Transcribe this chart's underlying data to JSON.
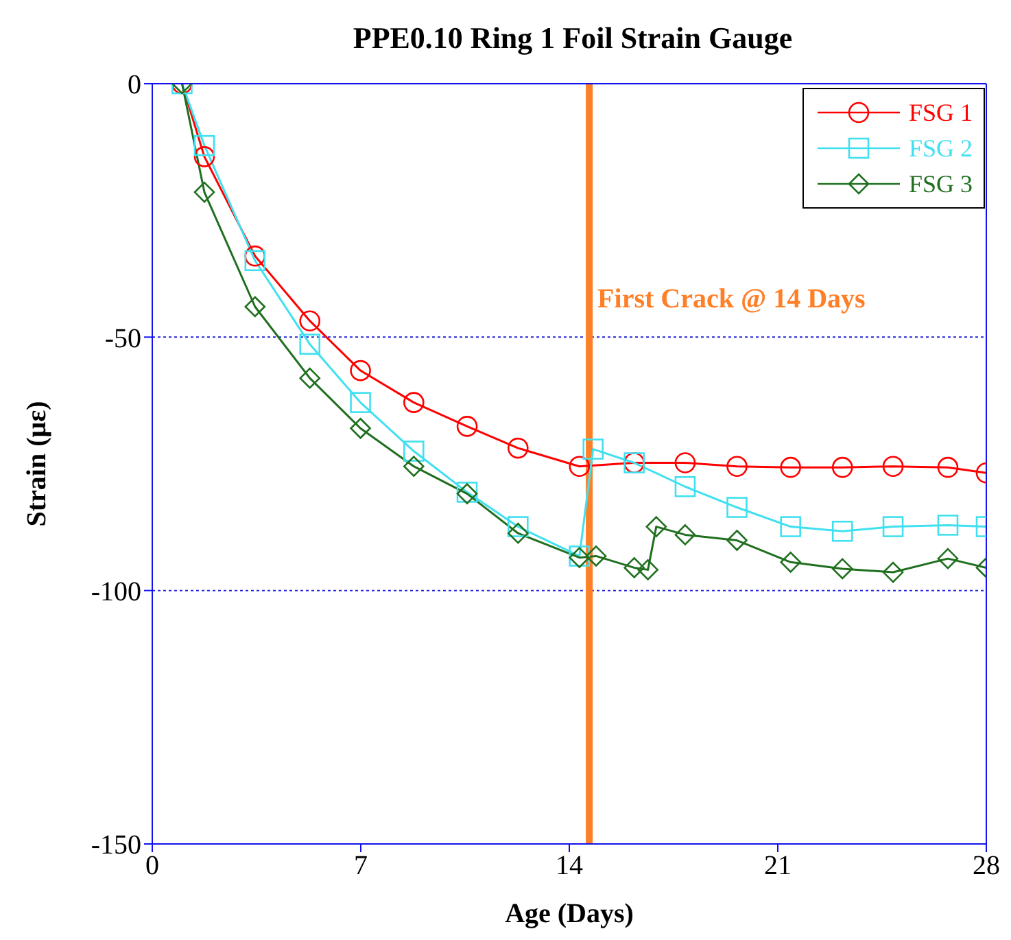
{
  "chart_data": {
    "type": "line",
    "title": "PPE0.10 Ring 1 Foil Strain Gauge",
    "xlabel": "Age (Days)",
    "ylabel": "Strain (με)",
    "xlim": [
      0,
      28
    ],
    "xticks": [
      0,
      7,
      14,
      21,
      28
    ],
    "ylim": [
      -150,
      0
    ],
    "yticks": [
      -150,
      -100,
      -50,
      0
    ],
    "grid": "y",
    "legend": "top right",
    "series": [
      {
        "name": "FSG 1",
        "color": "#ff0000",
        "marker": "circle",
        "x": [
          1,
          1.75,
          3.45,
          5.29,
          6.99,
          8.78,
          10.57,
          12.28,
          14.34,
          16.18,
          17.89,
          19.63,
          21.43,
          23.17,
          24.87,
          26.71,
          28
        ],
        "values": [
          0,
          -14.4,
          -34,
          -46.8,
          -56.6,
          -62.9,
          -67.6,
          -71.9,
          -75.5,
          -74.8,
          -74.8,
          -75.5,
          -75.7,
          -75.7,
          -75.5,
          -75.7,
          -76.8
        ]
      },
      {
        "name": "FSG 2",
        "color": "#40e0f0",
        "marker": "square",
        "x": [
          1,
          1.75,
          3.45,
          5.29,
          6.99,
          8.78,
          10.57,
          12.28,
          14.34,
          14.8,
          16.18,
          17.89,
          19.63,
          21.43,
          23.17,
          24.87,
          26.71,
          28
        ],
        "values": [
          0,
          -12.2,
          -34.9,
          -51.4,
          -62.9,
          -72.5,
          -80.6,
          -87.4,
          -93.2,
          -72.1,
          -74.8,
          -79.5,
          -83.6,
          -87.4,
          -88.3,
          -87.4,
          -87.1,
          -87.4
        ]
      },
      {
        "name": "FSG 3",
        "color": "#1f6f1f",
        "marker": "diamond",
        "x": [
          1,
          1.75,
          3.45,
          5.29,
          6.99,
          8.78,
          10.57,
          12.28,
          14.34,
          14.9,
          16.18,
          16.64,
          16.92,
          17.89,
          19.63,
          21.43,
          23.17,
          24.87,
          26.71,
          28
        ],
        "values": [
          0,
          -21.4,
          -44,
          -58.1,
          -68,
          -75.5,
          -80.9,
          -88.7,
          -93.5,
          -93.2,
          -95.5,
          -95.9,
          -87.4,
          -89,
          -90.1,
          -94.4,
          -95.7,
          -96.4,
          -93.7,
          -95.5
        ]
      }
    ],
    "ref_lines": [
      {
        "axis": "x",
        "value": 14.67,
        "label": "First Crack @ 14 Days",
        "color": "#ff7f27"
      }
    ]
  }
}
